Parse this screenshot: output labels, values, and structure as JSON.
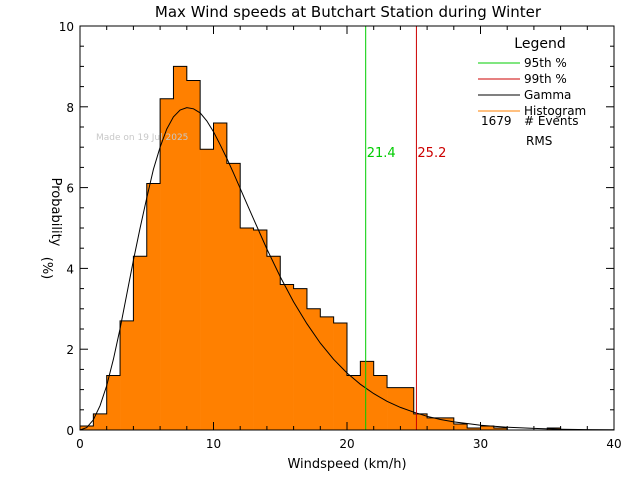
{
  "chart_data": {
    "type": "bar",
    "title": "Max Wind speeds at Butchart Station during Winter",
    "xlabel": "Windspeed (km/h)",
    "ylabel": "Probability",
    "ylabel_unit": "(%)",
    "xlim": [
      0,
      40
    ],
    "ylim": [
      0,
      10
    ],
    "x_ticks": [
      "0",
      "10",
      "20",
      "30",
      "40"
    ],
    "y_ticks": [
      "0",
      "2",
      "4",
      "6",
      "8",
      "10"
    ],
    "grid": false,
    "watermark": "Made on 19 Jul 2025",
    "legend": {
      "title": "Legend",
      "placement": "top-right",
      "entries": [
        {
          "label": "95th %",
          "color": "#00cc00"
        },
        {
          "label": "99th %",
          "color": "#cc0000"
        },
        {
          "label": "Gamma",
          "color": "#000000"
        },
        {
          "label": "Histogram",
          "color": "#ff8000"
        }
      ],
      "events_count": "1679",
      "events_label": "# Events",
      "rms_label": "RMS"
    },
    "histogram": {
      "color": "#ff8000",
      "bin_width": 1,
      "bin_starts": [
        0,
        1,
        2,
        3,
        4,
        5,
        6,
        7,
        8,
        9,
        10,
        11,
        12,
        13,
        14,
        15,
        16,
        17,
        18,
        19,
        20,
        21,
        22,
        23,
        24,
        25,
        26,
        27,
        28,
        29,
        30,
        31,
        32,
        33,
        34,
        35,
        36,
        37,
        38,
        39
      ],
      "values": [
        0.1,
        0.4,
        1.35,
        2.7,
        4.3,
        6.1,
        8.2,
        9.0,
        8.65,
        6.95,
        7.6,
        6.6,
        5.0,
        4.95,
        4.3,
        3.6,
        3.5,
        3.0,
        2.8,
        2.65,
        1.35,
        1.7,
        1.35,
        1.05,
        1.05,
        0.4,
        0.3,
        0.3,
        0.15,
        0.05,
        0.1,
        0.05,
        0.0,
        0.0,
        0.0,
        0.05,
        0.0,
        0.0,
        0.0,
        0.0
      ]
    },
    "gamma_curve": {
      "color": "#000000",
      "x": [
        0,
        0.5,
        1,
        1.5,
        2,
        2.5,
        3,
        3.5,
        4,
        4.5,
        5,
        5.5,
        6,
        6.5,
        7,
        7.5,
        8,
        8.5,
        9,
        9.5,
        10,
        10.5,
        11,
        11.5,
        12,
        12.5,
        13,
        14,
        15,
        16,
        17,
        18,
        19,
        20,
        21,
        22,
        23,
        24,
        25,
        26,
        27,
        28,
        29,
        30,
        32,
        34,
        36,
        38,
        40
      ],
      "y": [
        0,
        0.06,
        0.25,
        0.6,
        1.1,
        1.75,
        2.5,
        3.35,
        4.2,
        5.0,
        5.75,
        6.45,
        7.0,
        7.45,
        7.75,
        7.92,
        7.98,
        7.95,
        7.85,
        7.65,
        7.38,
        7.06,
        6.72,
        6.36,
        5.98,
        5.6,
        5.22,
        4.48,
        3.79,
        3.17,
        2.63,
        2.15,
        1.75,
        1.41,
        1.13,
        0.9,
        0.71,
        0.56,
        0.44,
        0.34,
        0.26,
        0.2,
        0.16,
        0.12,
        0.07,
        0.04,
        0.02,
        0.01,
        0.005
      ]
    },
    "percentile_lines": [
      {
        "name": "95th %",
        "x": 21.4,
        "label": "21.4",
        "color": "#00cc00"
      },
      {
        "name": "99th %",
        "x": 25.2,
        "label": "25.2",
        "color": "#cc0000"
      }
    ]
  }
}
